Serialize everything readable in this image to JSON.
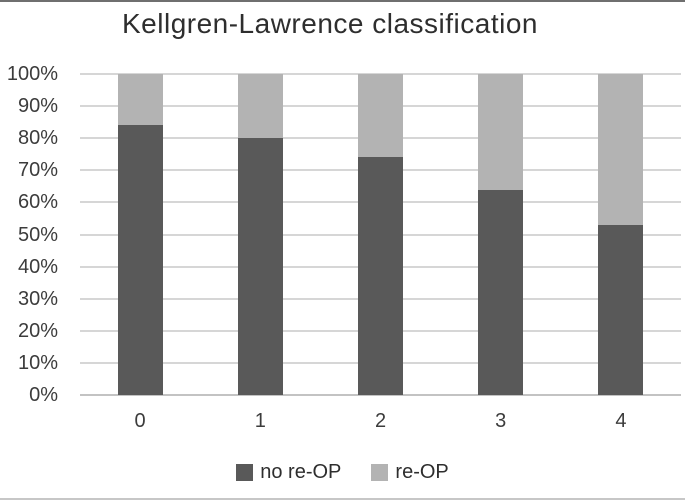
{
  "title": "Kellgren-Lawrence classification",
  "colors": {
    "series_dark": "#595959",
    "series_light": "#b3b3b3",
    "gridline": "#d6d6d6",
    "axis_baseline": "#c3c3c3",
    "text": "#2e2e2e",
    "background": "#ffffff"
  },
  "chart_data": {
    "type": "bar",
    "stacked": true,
    "percent_stacked": true,
    "title": "Kellgren-Lawrence classification",
    "xlabel": "",
    "ylabel": "",
    "categories": [
      "0",
      "1",
      "2",
      "3",
      "4"
    ],
    "series": [
      {
        "name": "no re-OP",
        "color": "#595959",
        "values": [
          84,
          80,
          74,
          64,
          53
        ]
      },
      {
        "name": "re-OP",
        "color": "#b3b3b3",
        "values": [
          16,
          20,
          26,
          36,
          47
        ]
      }
    ],
    "ylim": [
      0,
      100
    ],
    "y_ticks": [
      "100%",
      "90%",
      "80%",
      "70%",
      "60%",
      "50%",
      "40%",
      "30%",
      "20%",
      "10%",
      "0%"
    ],
    "grid": true,
    "legend_position": "bottom"
  }
}
